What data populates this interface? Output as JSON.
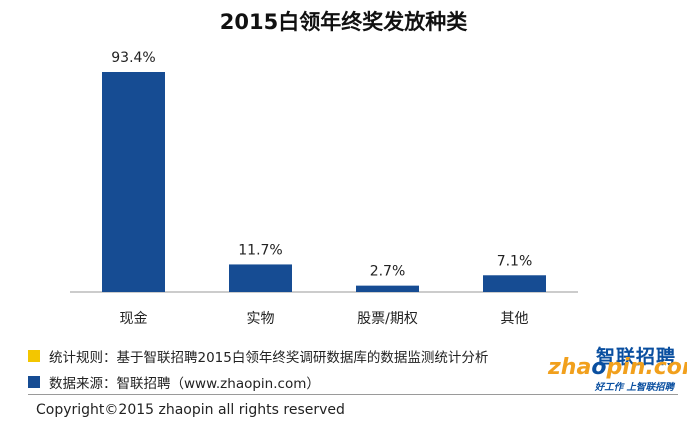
{
  "chart_data": {
    "type": "bar",
    "title": "2015白领年终奖发放种类",
    "categories": [
      "现金",
      "实物",
      "股票/期权",
      "其他"
    ],
    "values": [
      93.4,
      11.7,
      2.7,
      7.1
    ],
    "value_labels": [
      "93.4%",
      "11.7%",
      "2.7%",
      "7.1%"
    ],
    "unit": "%",
    "ylim": [
      0,
      100
    ],
    "grid": false,
    "bar_color": "#164c93"
  },
  "footer": {
    "note_label": "统计规则：基于智联招聘2015白领年终奖调研数据库的数据监测统计分析",
    "note_color": "#f3c600",
    "source_label": "数据来源：智联招聘（www.zhaopin.com）",
    "source_color": "#164c93",
    "copyright": "Copyright©2015 zhaopin all rights reserved"
  },
  "logo": {
    "cn": "智联招聘",
    "en_prefix": "zha",
    "en_o": "o",
    "en_suffix": "pin.com",
    "slogan": "好工作 上智联招聘"
  }
}
